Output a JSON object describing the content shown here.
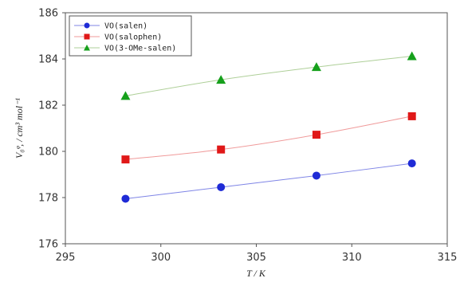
{
  "chart_data": {
    "type": "line",
    "xlabel": "T / K",
    "ylabel": "V₀ᵠ, / cm³ mol⁻¹",
    "xlim": [
      295,
      315
    ],
    "ylim": [
      176,
      186
    ],
    "xticks": [
      295,
      300,
      305,
      310,
      315
    ],
    "yticks": [
      176,
      178,
      180,
      182,
      184,
      186
    ],
    "x": [
      298.15,
      303.15,
      308.15,
      313.15
    ],
    "series": [
      {
        "name": "VO(salen)",
        "values": [
          177.95,
          178.45,
          178.95,
          179.48
        ],
        "color": "#1f2bd6",
        "line_color": "#7f85e6",
        "marker": "circle"
      },
      {
        "name": "VO(salophen)",
        "values": [
          179.65,
          180.08,
          180.72,
          181.52
        ],
        "color": "#e01818",
        "line_color": "#f09a9a",
        "marker": "square"
      },
      {
        "name": "VO(3-OMe-salen)",
        "values": [
          182.4,
          183.1,
          183.65,
          184.12
        ],
        "color": "#16a01c",
        "line_color": "#aecf98",
        "marker": "triangle"
      }
    ],
    "legend_position": "top-left",
    "grid": false
  }
}
